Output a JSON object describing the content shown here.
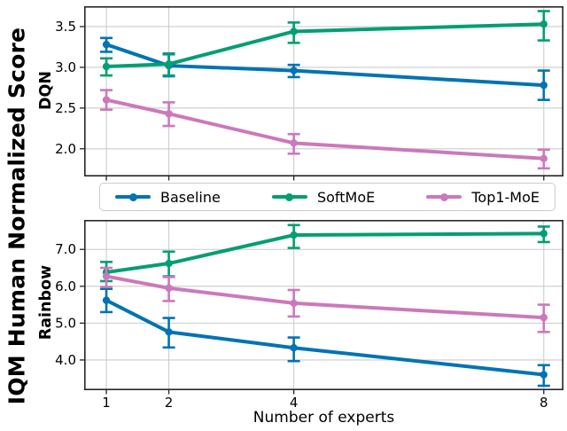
{
  "figure": {
    "y_axis_label": "IQM Human Normalized Score",
    "x_axis_label": "Number of experts"
  },
  "legend": {
    "items": [
      {
        "label": "Baseline",
        "color": "#0173b2"
      },
      {
        "label": "SoftMoE",
        "color": "#029e73"
      },
      {
        "label": "Top1-MoE",
        "color": "#cc78bc"
      }
    ]
  },
  "colors": {
    "grid": "#cccccc",
    "axis_border": "#262626",
    "background": "#ffffff"
  },
  "chart_data": [
    {
      "type": "line",
      "panel": "DQN",
      "xlabel": "Number of experts",
      "xscale": "linear",
      "x": [
        1,
        2,
        4,
        8
      ],
      "xticks": [
        1,
        2,
        4,
        8
      ],
      "xtick_labels": null,
      "xlim": [
        0.645,
        8.315
      ],
      "ylim": [
        1.66,
        3.75
      ],
      "yticks": [
        3.5,
        3.0,
        2.5,
        2.0
      ],
      "ytick_labels": [
        "3.5",
        "3.0",
        "2.5",
        "2.0"
      ],
      "grid": true,
      "series": [
        {
          "name": "Baseline",
          "color": "#0173b2",
          "values": [
            3.28,
            3.02,
            2.96,
            2.78
          ],
          "err_low": [
            3.19,
            2.89,
            2.88,
            2.6
          ],
          "err_high": [
            3.36,
            3.16,
            3.03,
            2.96
          ]
        },
        {
          "name": "SoftMoE",
          "color": "#029e73",
          "values": [
            3.01,
            3.04,
            3.44,
            3.53
          ],
          "err_low": [
            2.9,
            2.9,
            3.3,
            3.33
          ],
          "err_high": [
            3.11,
            3.17,
            3.55,
            3.69
          ]
        },
        {
          "name": "Top1-MoE",
          "color": "#cc78bc",
          "values": [
            2.6,
            2.43,
            2.07,
            1.88
          ],
          "err_low": [
            2.48,
            2.28,
            1.94,
            1.76
          ],
          "err_high": [
            2.72,
            2.57,
            2.18,
            1.99
          ]
        }
      ]
    },
    {
      "type": "line",
      "panel": "Rainbow",
      "xlabel": "Number of experts",
      "xscale": "linear",
      "x": [
        1,
        2,
        4,
        8
      ],
      "xticks": [
        1,
        2,
        4,
        8
      ],
      "xtick_labels": [
        "1",
        "2",
        "4",
        "8"
      ],
      "xlim": [
        0.645,
        8.315
      ],
      "ylim": [
        3.18,
        7.8
      ],
      "yticks": [
        7.0,
        6.0,
        5.0,
        4.0
      ],
      "ytick_labels": [
        "7.0",
        "6.0",
        "5.0",
        "4.0"
      ],
      "grid": true,
      "series": [
        {
          "name": "Baseline",
          "color": "#0173b2",
          "values": [
            5.62,
            4.76,
            4.33,
            3.6
          ],
          "err_low": [
            5.3,
            4.34,
            3.97,
            3.3
          ],
          "err_high": [
            5.93,
            5.14,
            4.61,
            3.86
          ]
        },
        {
          "name": "SoftMoE",
          "color": "#029e73",
          "values": [
            6.38,
            6.62,
            7.39,
            7.43
          ],
          "err_low": [
            6.14,
            6.27,
            7.04,
            7.2
          ],
          "err_high": [
            6.66,
            6.94,
            7.66,
            7.62
          ]
        },
        {
          "name": "Top1-MoE",
          "color": "#cc78bc",
          "values": [
            6.27,
            5.95,
            5.54,
            5.15
          ],
          "err_low": [
            5.98,
            5.6,
            5.18,
            4.76
          ],
          "err_high": [
            6.5,
            6.25,
            5.9,
            5.5
          ]
        }
      ]
    }
  ]
}
